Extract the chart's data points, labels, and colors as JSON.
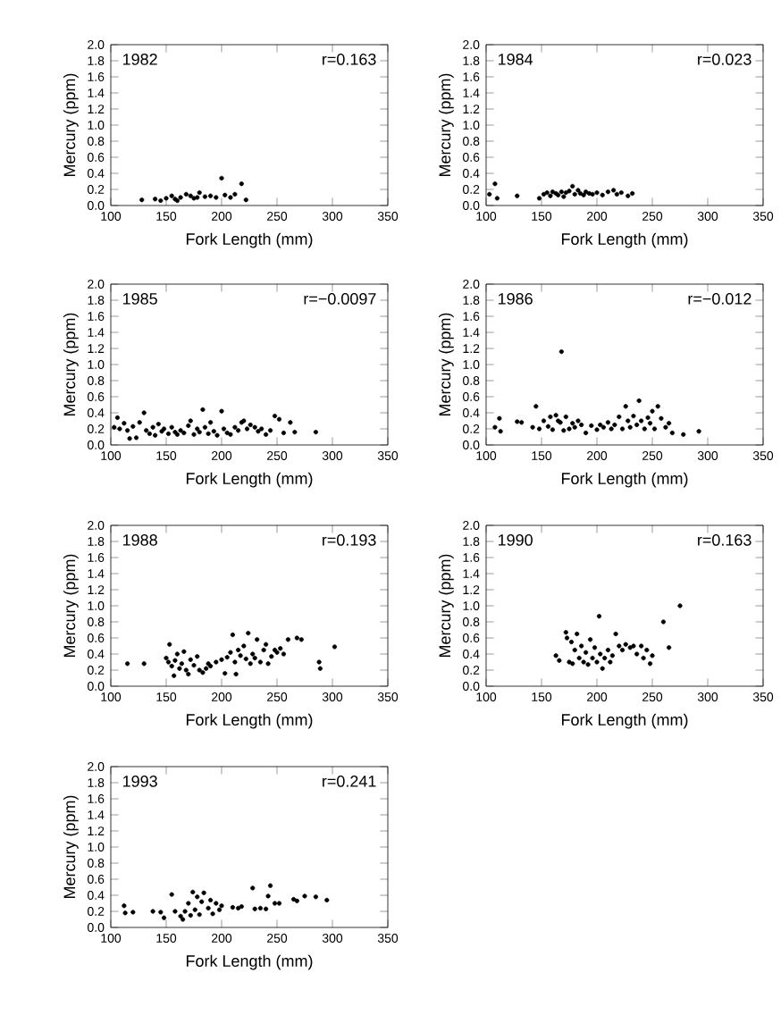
{
  "chart_data": [
    {
      "type": "scatter",
      "annotations": [
        "1982",
        "r=0.163"
      ],
      "xlabel": "Fork Length (mm)",
      "ylabel": "Mercury (ppm)",
      "xlim": [
        100,
        350
      ],
      "ylim": [
        0,
        2
      ],
      "xticks": [
        100,
        150,
        200,
        250,
        300,
        350
      ],
      "yticks": [
        {
          "value": 0,
          "label": "0.0"
        },
        {
          "value": 0.2,
          "label": "0.2"
        },
        {
          "value": 0.4,
          "label": "0.4"
        },
        {
          "value": 0.6,
          "label": "0.6"
        },
        {
          "value": 0.8,
          "label": "0.8"
        },
        {
          "value": 1,
          "label": "1.0"
        },
        {
          "value": 1.2,
          "label": "1.2"
        },
        {
          "value": 1.4,
          "label": "1.4"
        },
        {
          "value": 1.6,
          "label": "1.6"
        },
        {
          "value": 1.8,
          "label": "1.8"
        },
        {
          "value": 2,
          "label": "2.0"
        }
      ],
      "color": "#000000",
      "x": [
        128,
        140,
        145,
        150,
        155,
        158,
        160,
        163,
        168,
        172,
        175,
        178,
        180,
        185,
        190,
        195,
        200,
        203,
        208,
        212,
        218,
        222
      ],
      "values": [
        0.07,
        0.08,
        0.06,
        0.09,
        0.12,
        0.08,
        0.06,
        0.1,
        0.14,
        0.12,
        0.09,
        0.1,
        0.16,
        0.11,
        0.12,
        0.1,
        0.34,
        0.13,
        0.1,
        0.14,
        0.27,
        0.07
      ]
    },
    {
      "type": "scatter",
      "annotations": [
        "1984",
        "r=0.023"
      ],
      "xlabel": "Fork Length (mm)",
      "ylabel": "Mercury (ppm)",
      "xlim": [
        100,
        350
      ],
      "ylim": [
        0,
        2
      ],
      "xticks": [
        100,
        150,
        200,
        250,
        300,
        350
      ],
      "yticks": [
        {
          "value": 0,
          "label": "0.0"
        },
        {
          "value": 0.2,
          "label": "0.2"
        },
        {
          "value": 0.4,
          "label": "0.4"
        },
        {
          "value": 0.6,
          "label": "0.6"
        },
        {
          "value": 0.8,
          "label": "0.8"
        },
        {
          "value": 1,
          "label": "1.0"
        },
        {
          "value": 1.2,
          "label": "1.2"
        },
        {
          "value": 1.4,
          "label": "1.4"
        },
        {
          "value": 1.6,
          "label": "1.6"
        },
        {
          "value": 1.8,
          "label": "1.8"
        },
        {
          "value": 2,
          "label": "2.0"
        }
      ],
      "color": "#000000",
      "x": [
        103,
        108,
        110,
        128,
        148,
        152,
        155,
        158,
        160,
        163,
        165,
        168,
        170,
        172,
        175,
        178,
        180,
        183,
        185,
        188,
        190,
        193,
        196,
        200,
        205,
        210,
        215,
        218,
        222,
        228,
        232
      ],
      "values": [
        0.14,
        0.27,
        0.09,
        0.12,
        0.09,
        0.14,
        0.16,
        0.12,
        0.17,
        0.15,
        0.13,
        0.17,
        0.11,
        0.16,
        0.18,
        0.24,
        0.14,
        0.19,
        0.15,
        0.13,
        0.17,
        0.15,
        0.14,
        0.16,
        0.13,
        0.17,
        0.19,
        0.14,
        0.16,
        0.12,
        0.15
      ]
    },
    {
      "type": "scatter",
      "annotations": [
        "1985",
        "r=−0.0097"
      ],
      "xlabel": "Fork Length (mm)",
      "ylabel": "Mercury (ppm)",
      "xlim": [
        100,
        350
      ],
      "ylim": [
        0,
        2
      ],
      "xticks": [
        100,
        150,
        200,
        250,
        300,
        350
      ],
      "yticks": [
        {
          "value": 0,
          "label": "0.0"
        },
        {
          "value": 0.2,
          "label": "0.2"
        },
        {
          "value": 0.4,
          "label": "0.4"
        },
        {
          "value": 0.6,
          "label": "0.6"
        },
        {
          "value": 0.8,
          "label": "0.8"
        },
        {
          "value": 1,
          "label": "1.0"
        },
        {
          "value": 1.2,
          "label": "1.2"
        },
        {
          "value": 1.4,
          "label": "1.4"
        },
        {
          "value": 1.6,
          "label": "1.6"
        },
        {
          "value": 1.8,
          "label": "1.8"
        },
        {
          "value": 2,
          "label": "2.0"
        }
      ],
      "color": "#000000",
      "x": [
        103,
        106,
        108,
        112,
        115,
        117,
        120,
        123,
        126,
        130,
        132,
        135,
        138,
        140,
        143,
        146,
        148,
        152,
        155,
        158,
        160,
        163,
        166,
        170,
        172,
        175,
        178,
        180,
        183,
        185,
        188,
        190,
        193,
        196,
        200,
        202,
        205,
        208,
        212,
        215,
        218,
        220,
        223,
        226,
        230,
        233,
        236,
        240,
        244,
        248,
        252,
        256,
        262,
        266,
        285
      ],
      "values": [
        0.22,
        0.34,
        0.2,
        0.27,
        0.18,
        0.08,
        0.23,
        0.09,
        0.28,
        0.4,
        0.18,
        0.14,
        0.22,
        0.12,
        0.26,
        0.17,
        0.2,
        0.14,
        0.22,
        0.16,
        0.13,
        0.18,
        0.15,
        0.24,
        0.3,
        0.13,
        0.2,
        0.16,
        0.44,
        0.22,
        0.14,
        0.28,
        0.17,
        0.12,
        0.42,
        0.2,
        0.15,
        0.13,
        0.22,
        0.18,
        0.28,
        0.3,
        0.2,
        0.25,
        0.22,
        0.17,
        0.2,
        0.13,
        0.18,
        0.36,
        0.32,
        0.15,
        0.28,
        0.16,
        0.16
      ]
    },
    {
      "type": "scatter",
      "annotations": [
        "1986",
        "r=−0.012"
      ],
      "xlabel": "Fork Length (mm)",
      "ylabel": "Mercury (ppm)",
      "xlim": [
        100,
        350
      ],
      "ylim": [
        0,
        2
      ],
      "xticks": [
        100,
        150,
        200,
        250,
        300,
        350
      ],
      "yticks": [
        {
          "value": 0,
          "label": "0.0"
        },
        {
          "value": 0.2,
          "label": "0.2"
        },
        {
          "value": 0.4,
          "label": "0.4"
        },
        {
          "value": 0.6,
          "label": "0.6"
        },
        {
          "value": 0.8,
          "label": "0.8"
        },
        {
          "value": 1,
          "label": "1.0"
        },
        {
          "value": 1.2,
          "label": "1.2"
        },
        {
          "value": 1.4,
          "label": "1.4"
        },
        {
          "value": 1.6,
          "label": "1.6"
        },
        {
          "value": 1.8,
          "label": "1.8"
        },
        {
          "value": 2,
          "label": "2.0"
        }
      ],
      "color": "#000000",
      "x": [
        108,
        112,
        113,
        128,
        132,
        142,
        145,
        148,
        152,
        156,
        158,
        160,
        163,
        165,
        167,
        168,
        170,
        172,
        175,
        178,
        180,
        183,
        186,
        190,
        195,
        200,
        203,
        206,
        210,
        213,
        216,
        220,
        223,
        226,
        228,
        230,
        233,
        236,
        238,
        240,
        243,
        246,
        248,
        250,
        252,
        255,
        258,
        262,
        265,
        268,
        278,
        292
      ],
      "values": [
        0.22,
        0.33,
        0.17,
        0.29,
        0.28,
        0.22,
        0.48,
        0.2,
        0.3,
        0.23,
        0.35,
        0.19,
        0.37,
        0.3,
        0.28,
        1.16,
        0.18,
        0.35,
        0.2,
        0.27,
        0.22,
        0.3,
        0.25,
        0.15,
        0.24,
        0.19,
        0.25,
        0.22,
        0.28,
        0.2,
        0.25,
        0.35,
        0.2,
        0.48,
        0.3,
        0.22,
        0.36,
        0.25,
        0.55,
        0.3,
        0.2,
        0.34,
        0.27,
        0.42,
        0.2,
        0.48,
        0.33,
        0.22,
        0.27,
        0.15,
        0.13,
        0.17
      ]
    },
    {
      "type": "scatter",
      "annotations": [
        "1988",
        "r=0.193"
      ],
      "xlabel": "Fork Length (mm)",
      "ylabel": "Mercury (ppm)",
      "xlim": [
        100,
        350
      ],
      "ylim": [
        0,
        2
      ],
      "xticks": [
        100,
        150,
        200,
        250,
        300,
        350
      ],
      "yticks": [
        {
          "value": 0,
          "label": "0.0"
        },
        {
          "value": 0.2,
          "label": "0.2"
        },
        {
          "value": 0.4,
          "label": "0.4"
        },
        {
          "value": 0.6,
          "label": "0.6"
        },
        {
          "value": 0.8,
          "label": "0.8"
        },
        {
          "value": 1,
          "label": "1.0"
        },
        {
          "value": 1.2,
          "label": "1.2"
        },
        {
          "value": 1.4,
          "label": "1.4"
        },
        {
          "value": 1.6,
          "label": "1.6"
        },
        {
          "value": 1.8,
          "label": "1.8"
        },
        {
          "value": 2,
          "label": "2.0"
        }
      ],
      "color": "#000000",
      "x": [
        115,
        130,
        150,
        152,
        153,
        155,
        157,
        158,
        160,
        162,
        164,
        166,
        168,
        170,
        172,
        175,
        178,
        180,
        183,
        186,
        188,
        190,
        195,
        200,
        203,
        205,
        208,
        210,
        212,
        213,
        215,
        217,
        220,
        222,
        224,
        226,
        228,
        230,
        232,
        235,
        238,
        240,
        242,
        245,
        248,
        250,
        253,
        256,
        260,
        268,
        272,
        288,
        289,
        302
      ],
      "values": [
        0.28,
        0.28,
        0.35,
        0.3,
        0.52,
        0.25,
        0.13,
        0.32,
        0.4,
        0.22,
        0.28,
        0.43,
        0.2,
        0.15,
        0.33,
        0.26,
        0.37,
        0.2,
        0.17,
        0.22,
        0.28,
        0.25,
        0.3,
        0.33,
        0.16,
        0.36,
        0.42,
        0.64,
        0.3,
        0.15,
        0.45,
        0.38,
        0.5,
        0.34,
        0.66,
        0.28,
        0.4,
        0.35,
        0.58,
        0.3,
        0.45,
        0.52,
        0.28,
        0.37,
        0.45,
        0.42,
        0.47,
        0.4,
        0.58,
        0.6,
        0.58,
        0.3,
        0.22,
        0.49
      ]
    },
    {
      "type": "scatter",
      "annotations": [
        "1990",
        "r=0.163"
      ],
      "xlabel": "Fork Length (mm)",
      "ylabel": "Mercury (ppm)",
      "xlim": [
        100,
        350
      ],
      "ylim": [
        0,
        2
      ],
      "xticks": [
        100,
        150,
        200,
        250,
        300,
        350
      ],
      "yticks": [
        {
          "value": 0,
          "label": "0.0"
        },
        {
          "value": 0.2,
          "label": "0.2"
        },
        {
          "value": 0.4,
          "label": "0.4"
        },
        {
          "value": 0.6,
          "label": "0.6"
        },
        {
          "value": 0.8,
          "label": "0.8"
        },
        {
          "value": 1,
          "label": "1.0"
        },
        {
          "value": 1.2,
          "label": "1.2"
        },
        {
          "value": 1.4,
          "label": "1.4"
        },
        {
          "value": 1.6,
          "label": "1.6"
        },
        {
          "value": 1.8,
          "label": "1.8"
        },
        {
          "value": 2,
          "label": "2.0"
        }
      ],
      "color": "#000000",
      "x": [
        163,
        166,
        172,
        173,
        175,
        177,
        178,
        180,
        182,
        184,
        186,
        188,
        190,
        192,
        194,
        196,
        198,
        200,
        202,
        203,
        205,
        207,
        210,
        212,
        214,
        217,
        220,
        223,
        226,
        230,
        233,
        236,
        240,
        242,
        245,
        248,
        250,
        260,
        265,
        275
      ],
      "values": [
        0.38,
        0.32,
        0.67,
        0.6,
        0.3,
        0.55,
        0.28,
        0.45,
        0.65,
        0.35,
        0.5,
        0.3,
        0.42,
        0.27,
        0.58,
        0.35,
        0.48,
        0.3,
        0.87,
        0.4,
        0.22,
        0.35,
        0.45,
        0.3,
        0.38,
        0.65,
        0.5,
        0.45,
        0.52,
        0.48,
        0.5,
        0.4,
        0.5,
        0.35,
        0.45,
        0.28,
        0.38,
        0.8,
        0.48,
        1.0
      ]
    },
    {
      "type": "scatter",
      "annotations": [
        "1993",
        "r=0.241"
      ],
      "xlabel": "Fork Length (mm)",
      "ylabel": "Mercury (ppm)",
      "xlim": [
        100,
        350
      ],
      "ylim": [
        0,
        2
      ],
      "xticks": [
        100,
        150,
        200,
        250,
        300,
        350
      ],
      "yticks": [
        {
          "value": 0,
          "label": "0.0"
        },
        {
          "value": 0.2,
          "label": "0.2"
        },
        {
          "value": 0.4,
          "label": "0.4"
        },
        {
          "value": 0.6,
          "label": "0.6"
        },
        {
          "value": 0.8,
          "label": "0.8"
        },
        {
          "value": 1,
          "label": "1.0"
        },
        {
          "value": 1.2,
          "label": "1.2"
        },
        {
          "value": 1.4,
          "label": "1.4"
        },
        {
          "value": 1.6,
          "label": "1.6"
        },
        {
          "value": 1.8,
          "label": "1.8"
        },
        {
          "value": 2,
          "label": "2.0"
        }
      ],
      "color": "#000000",
      "x": [
        112,
        113,
        120,
        138,
        145,
        148,
        155,
        158,
        163,
        165,
        167,
        170,
        172,
        174,
        176,
        178,
        180,
        182,
        184,
        188,
        190,
        192,
        195,
        198,
        200,
        210,
        215,
        218,
        228,
        230,
        235,
        240,
        242,
        244,
        248,
        252,
        265,
        268,
        275,
        285,
        295
      ],
      "values": [
        0.27,
        0.18,
        0.19,
        0.2,
        0.19,
        0.12,
        0.41,
        0.2,
        0.14,
        0.1,
        0.2,
        0.3,
        0.15,
        0.44,
        0.22,
        0.38,
        0.16,
        0.32,
        0.43,
        0.24,
        0.34,
        0.17,
        0.3,
        0.22,
        0.27,
        0.25,
        0.24,
        0.26,
        0.49,
        0.23,
        0.24,
        0.23,
        0.39,
        0.52,
        0.3,
        0.3,
        0.35,
        0.33,
        0.39,
        0.38,
        0.34
      ]
    }
  ]
}
